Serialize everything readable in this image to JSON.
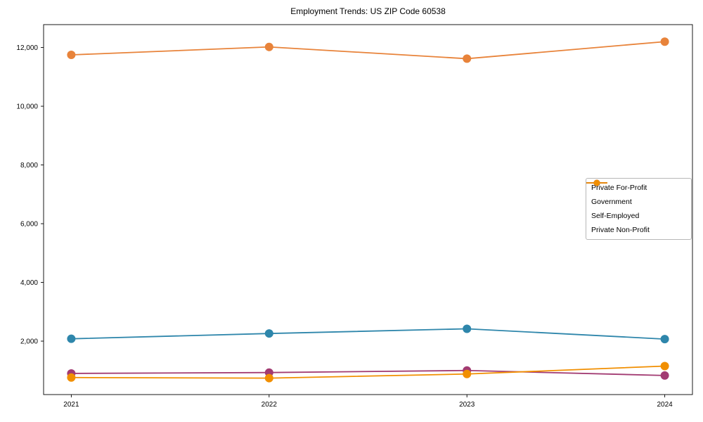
{
  "chart_data": {
    "type": "line",
    "title": "Employment Trends: US ZIP Code 60538",
    "categories": [
      "2021",
      "2022",
      "2023",
      "2024"
    ],
    "x_tick_labels": [
      "2021",
      "2022",
      "2023",
      "2024"
    ],
    "y_ticks": [
      2000,
      4000,
      6000,
      8000,
      10000,
      12000
    ],
    "y_tick_labels": [
      "2,000",
      "4,000",
      "6,000",
      "8,000",
      "10,000",
      "12,000"
    ],
    "xlabel": "",
    "ylabel": "",
    "ylim": [
      180,
      12780
    ],
    "xlim": [
      -0.14,
      3.14
    ],
    "grid": false,
    "legend_position": "center-right",
    "marker": "circle",
    "series": [
      {
        "name": "Private For-Profit",
        "color": "#E8833A",
        "values": [
          11750,
          12020,
          11620,
          12200
        ]
      },
      {
        "name": "Government",
        "color": "#2E86AB",
        "values": [
          2080,
          2260,
          2420,
          2070
        ]
      },
      {
        "name": "Self-Employed",
        "color": "#A23B72",
        "values": [
          900,
          930,
          1000,
          830
        ]
      },
      {
        "name": "Private Non-Profit",
        "color": "#F18F01",
        "values": [
          760,
          740,
          880,
          1150
        ]
      }
    ]
  }
}
